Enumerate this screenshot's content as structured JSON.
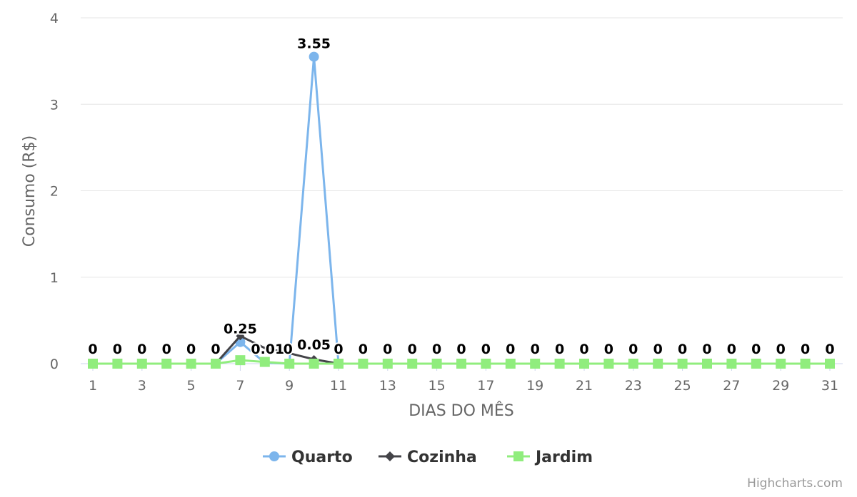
{
  "credits": "Highcharts.com",
  "chart_data": {
    "type": "line",
    "title": "",
    "xlabel": "DIAS DO MÊS",
    "ylabel": "Consumo (R$)",
    "x": [
      1,
      2,
      3,
      4,
      5,
      6,
      7,
      8,
      9,
      10,
      11,
      12,
      13,
      14,
      15,
      16,
      17,
      18,
      19,
      20,
      21,
      22,
      23,
      24,
      25,
      26,
      27,
      28,
      29,
      30,
      31
    ],
    "x_tick_labels": [
      "1",
      "3",
      "5",
      "7",
      "9",
      "11",
      "13",
      "15",
      "17",
      "19",
      "21",
      "23",
      "25",
      "27",
      "29",
      "31"
    ],
    "y_tick_labels": [
      "0",
      "1",
      "2",
      "3",
      "4"
    ],
    "ylim": [
      0,
      4
    ],
    "grid": true,
    "legend_position": "bottom-center",
    "series": [
      {
        "name": "Quarto",
        "color": "#7cb5ec",
        "marker": "circle",
        "values": [
          0,
          0,
          0,
          0,
          0,
          0,
          0.25,
          0.01,
          0,
          3.55,
          0,
          0,
          0,
          0,
          0,
          0,
          0,
          0,
          0,
          0,
          0,
          0,
          0,
          0,
          0,
          0,
          0,
          0,
          0,
          0,
          0
        ],
        "labels": [
          "0",
          "0",
          "0",
          "0",
          "0",
          "0",
          "0.25",
          "0.01",
          "0",
          "3.55",
          "0",
          "0",
          "0",
          "0",
          "0",
          "0",
          "0",
          "0",
          "0",
          "0",
          "0",
          "0",
          "0",
          "0",
          "0",
          "0",
          "0",
          "0",
          "0",
          "0",
          "0"
        ]
      },
      {
        "name": "Cozinha",
        "color": "#434348",
        "marker": "diamond",
        "values": [
          0,
          0,
          0,
          0,
          0,
          0,
          0.32,
          0.18,
          0.12,
          0.05,
          0,
          0,
          0,
          0,
          0,
          0,
          0,
          0,
          0,
          0,
          0,
          0,
          0,
          0,
          0,
          0,
          0,
          0,
          0,
          0,
          0
        ],
        "labels": [
          "",
          "",
          "",
          "",
          "",
          "",
          "",
          "",
          "",
          "0.05",
          "",
          "",
          "",
          "",
          "",
          "",
          "",
          "",
          "",
          "",
          "",
          "",
          "",
          "",
          "",
          "",
          "",
          "",
          "",
          "",
          ""
        ]
      },
      {
        "name": "Jardim",
        "color": "#90ed7d",
        "marker": "square",
        "values": [
          0,
          0,
          0,
          0,
          0,
          0,
          0.04,
          0.02,
          0,
          0,
          0,
          0,
          0,
          0,
          0,
          0,
          0,
          0,
          0,
          0,
          0,
          0,
          0,
          0,
          0,
          0,
          0,
          0,
          0,
          0,
          0
        ],
        "labels": []
      }
    ]
  }
}
